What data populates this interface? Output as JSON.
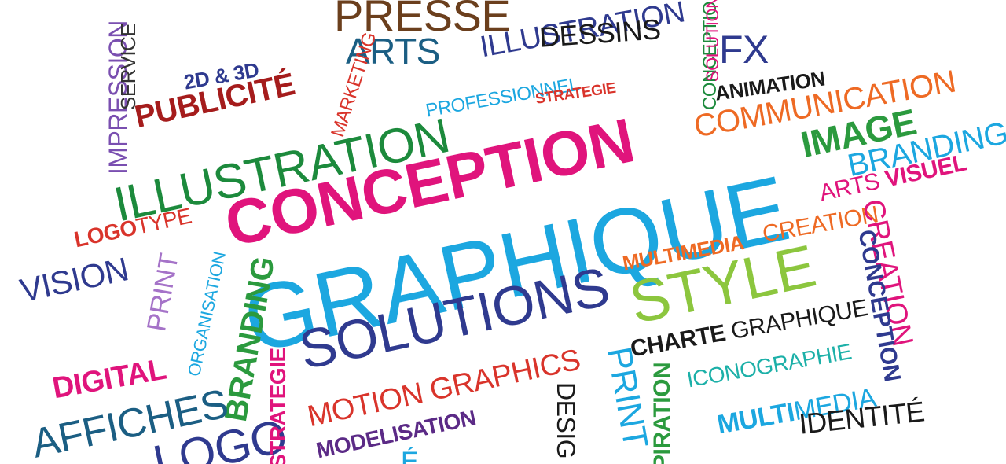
{
  "words": [
    {
      "text": "PRESSE",
      "color": "#6b3f1d",
      "weight": "normal"
    },
    {
      "text": "ARTS",
      "color": "#1b5e83",
      "weight": "normal"
    },
    {
      "text": "ILLUSTRATION",
      "color": "#2f3a8f",
      "weight": "normal"
    },
    {
      "text": "DESSINS",
      "color": "#1a1a1a",
      "weight": "normal"
    },
    {
      "text": "CONCEPTION",
      "color": "#1c8a3c",
      "weight": "normal"
    },
    {
      "text": "SOLUTION",
      "color": "#e0147c",
      "weight": "normal"
    },
    {
      "text": "FX",
      "color": "#2f3a8f",
      "weight": "normal"
    },
    {
      "text": "ANIMATION",
      "color": "#1a1a1a",
      "weight": "bold"
    },
    {
      "text": "COMMUNICATION",
      "color": "#ee6a24",
      "weight": "normal"
    },
    {
      "text": "IMAGE",
      "color": "#2b9a3e",
      "weight": "bold"
    },
    {
      "text": "BRANDING",
      "color": "#1ca7e0",
      "weight": "normal"
    },
    {
      "text": "ARTS",
      "color": "#e0147c",
      "weight": "normal"
    },
    {
      "text": "VISUEL",
      "color": "#e0147c",
      "weight": "bold"
    },
    {
      "text": "2D & 3D",
      "color": "#2f3a8f",
      "weight": "bold"
    },
    {
      "text": "PUBLICITÉ",
      "color": "#a51c1c",
      "weight": "bold"
    },
    {
      "text": "MARKETING",
      "color": "#d9342b",
      "weight": "normal"
    },
    {
      "text": "IMPRESSION",
      "color": "#7a4fb0",
      "weight": "normal"
    },
    {
      "text": "SERVICE",
      "color": "#333333",
      "weight": "normal"
    },
    {
      "text": "PROFESSIONNEL",
      "color": "#1ca7e0",
      "weight": "normal"
    },
    {
      "text": "STRATEGIE",
      "color": "#d9342b",
      "weight": "bold"
    },
    {
      "text": "ILLUSTRATION",
      "color": "#1c8a3c",
      "weight": "normal"
    },
    {
      "text": "CONCEPTION",
      "color": "#e0147c",
      "weight": "bold"
    },
    {
      "text": "GRAPHIQUE",
      "color": "#1ca7e0",
      "weight": "normal"
    },
    {
      "text": "LOGO",
      "color": "#d9342b",
      "weight": "bold"
    },
    {
      "text": "TYPE",
      "color": "#d9342b",
      "weight": "normal"
    },
    {
      "text": "VISION",
      "color": "#2f3a8f",
      "weight": "normal"
    },
    {
      "text": "PRINT",
      "color": "#a573c8",
      "weight": "normal"
    },
    {
      "text": "ORGANISATION",
      "color": "#1ca7e0",
      "weight": "normal"
    },
    {
      "text": "BRANDING",
      "color": "#2b9a3e",
      "weight": "bold"
    },
    {
      "text": "SOLUTIONS",
      "color": "#2f3a8f",
      "weight": "normal"
    },
    {
      "text": "MULTIMEDIA",
      "color": "#ee6a24",
      "weight": "bold"
    },
    {
      "text": "CREATION",
      "color": "#ee6a24",
      "weight": "normal"
    },
    {
      "text": "STYLE",
      "color": "#8cc63e",
      "weight": "normal"
    },
    {
      "text": "CREATION",
      "color": "#e0147c",
      "weight": "normal"
    },
    {
      "text": "CONCEPTION",
      "color": "#2f3a8f",
      "weight": "bold"
    },
    {
      "text": "CHARTE",
      "color": "#1a1a1a",
      "weight": "bold"
    },
    {
      "text": "GRAPHIQUE",
      "color": "#1a1a1a",
      "weight": "normal"
    },
    {
      "text": "ICONOGRAPHIE",
      "color": "#1cb0a8",
      "weight": "normal"
    },
    {
      "text": "MULTI",
      "color": "#1ca7e0",
      "weight": "bold"
    },
    {
      "text": "MEDIA",
      "color": "#1ca7e0",
      "weight": "normal"
    },
    {
      "text": "IDENTITÉ",
      "color": "#1a1a1a",
      "weight": "normal"
    },
    {
      "text": "DIGITAL",
      "color": "#e0147c",
      "weight": "bold"
    },
    {
      "text": "AFFICHES",
      "color": "#1b5e83",
      "weight": "normal"
    },
    {
      "text": "LOGO",
      "color": "#2f3a8f",
      "weight": "normal"
    },
    {
      "text": "STRATEGIE",
      "color": "#e0147c",
      "weight": "bold"
    },
    {
      "text": "MOTION GRAPHICS",
      "color": "#d9342b",
      "weight": "normal"
    },
    {
      "text": "MODELISATION",
      "color": "#5b2a86",
      "weight": "bold"
    },
    {
      "text": "PRINT",
      "color": "#1ca7e0",
      "weight": "normal"
    },
    {
      "text": "DESIG",
      "color": "#1a1a1a",
      "weight": "normal"
    },
    {
      "text": "PIRATION",
      "color": "#2b9a3e",
      "weight": "bold"
    },
    {
      "text": "É",
      "color": "#1ca7e0",
      "weight": "normal"
    }
  ]
}
